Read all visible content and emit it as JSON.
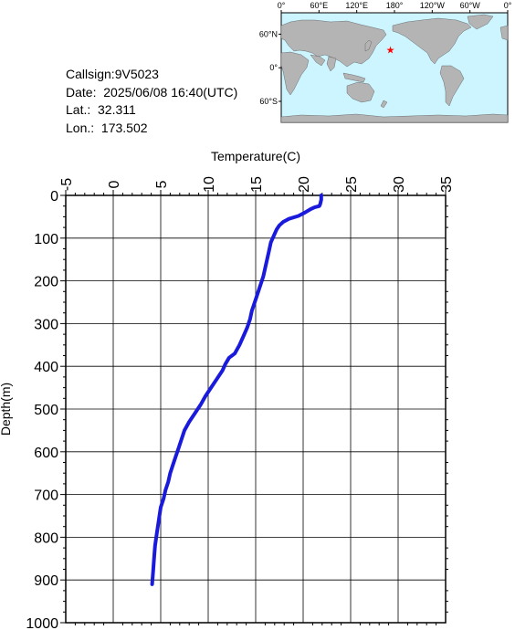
{
  "info": {
    "callsign": "Callsign:9V5023",
    "date": "Date:  2025/06/08 16:40(UTC)",
    "lat": "Lat.:  32.311",
    "lon": "Lon.:  173.502"
  },
  "map": {
    "top_labels": [
      "0°",
      "60°E",
      "120°E",
      "180°",
      "120°W",
      "60°W",
      "0°"
    ],
    "left_labels": [
      "60°N",
      "0°",
      "60°S"
    ],
    "ocean_color": "#ccf5ff",
    "land_color": "#b4b4b4",
    "marker_color": "#ff0000",
    "marker": {
      "lon": 173.502,
      "lat": 32.311
    }
  },
  "chart_data": {
    "type": "line",
    "title": "",
    "xlabel": "Temperature(C)",
    "ylabel": "Depth(m)",
    "xlim": [
      -5,
      35
    ],
    "ylim": [
      0,
      1000
    ],
    "x_ticks": [
      -5,
      0,
      5,
      10,
      15,
      20,
      25,
      30,
      35
    ],
    "y_ticks": [
      0,
      100,
      200,
      300,
      400,
      500,
      600,
      700,
      800,
      900,
      1000
    ],
    "x_tick_labels": [
      "-5",
      "0",
      "5",
      "10",
      "15",
      "20",
      "25",
      "30",
      "35"
    ],
    "y_tick_labels": [
      "0",
      "100",
      "200",
      "300",
      "400",
      "500",
      "600",
      "700",
      "800",
      "900",
      "1000"
    ],
    "grid": true,
    "line_color": "#1a1adc",
    "series": [
      {
        "x": [
          21.9,
          21.9,
          21.8,
          21.7,
          21.2,
          20.8,
          20.2,
          19.5,
          18.5,
          17.9,
          17.5,
          17.2,
          17.0,
          16.8,
          16.6,
          16.5,
          16.4,
          16.2,
          16.0,
          15.8,
          15.5,
          15.2,
          14.9,
          14.6,
          14.4,
          14.1,
          13.7,
          13.3,
          12.8,
          12.2,
          11.8,
          11.5,
          10.9,
          10.3,
          9.7,
          9.2,
          8.6,
          8.0,
          7.5,
          7.2,
          6.9,
          6.6,
          6.3,
          6.0,
          5.8,
          5.5,
          5.3,
          5.0,
          4.8,
          4.6,
          4.4,
          4.3,
          4.2,
          4.1
        ],
        "y": [
          0,
          10,
          20,
          25,
          28,
          32,
          40,
          48,
          55,
          62,
          70,
          80,
          90,
          100,
          110,
          120,
          130,
          150,
          170,
          190,
          210,
          230,
          250,
          270,
          290,
          310,
          330,
          350,
          370,
          380,
          395,
          410,
          430,
          450,
          470,
          490,
          510,
          530,
          550,
          570,
          590,
          610,
          630,
          650,
          670,
          690,
          710,
          730,
          760,
          790,
          820,
          850,
          880,
          910
        ]
      }
    ]
  }
}
